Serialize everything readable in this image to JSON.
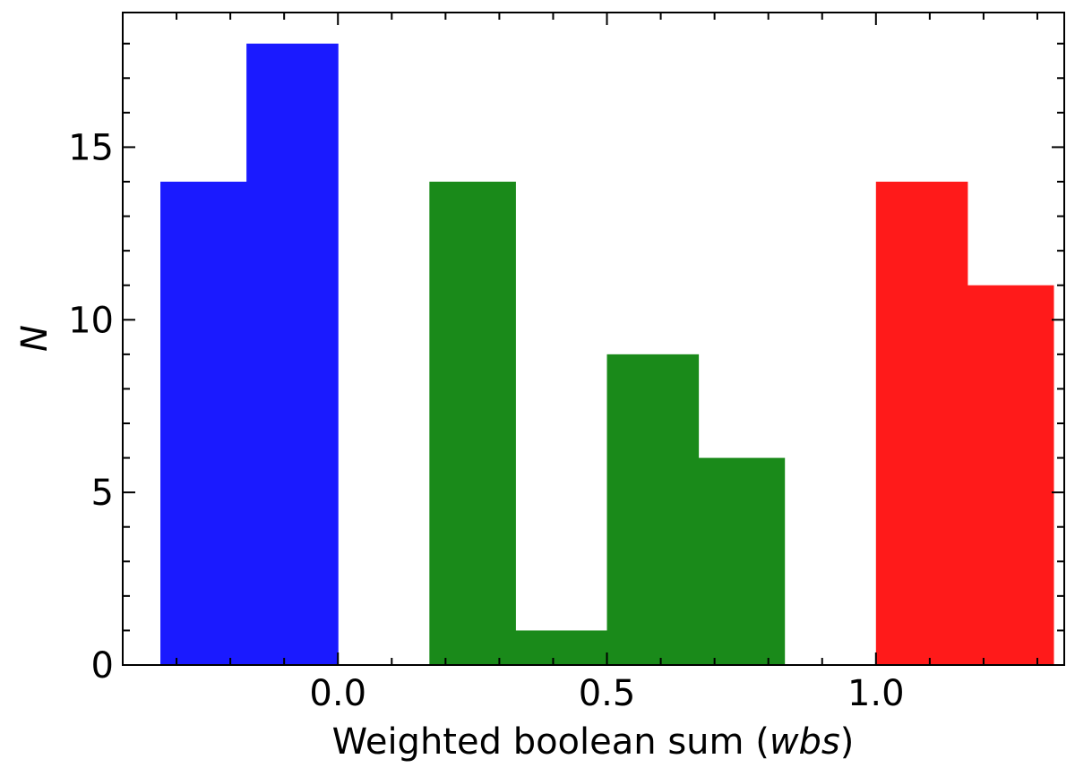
{
  "chart_data": {
    "type": "bar",
    "xlabel_prefix": "Weighted boolean sum (",
    "xlabel_italic": "wbs",
    "xlabel_suffix": ")",
    "ylabel": "N",
    "xlim": [
      -0.4,
      1.35
    ],
    "ylim": [
      0,
      18.9
    ],
    "x_ticks": [
      0.0,
      0.5,
      1.0
    ],
    "x_tick_labels": [
      "0.0",
      "0.5",
      "1.0"
    ],
    "x_minor_step": 0.1,
    "y_ticks": [
      0,
      5,
      10,
      15
    ],
    "y_tick_labels": [
      "0",
      "5",
      "10",
      "15"
    ],
    "y_minor_step": 1,
    "grid": false,
    "series": [
      {
        "color": "#1a1aff",
        "bins": [
          {
            "x0": -0.33,
            "x1": -0.17,
            "value": 14
          },
          {
            "x0": -0.17,
            "x1": 0.0,
            "value": 18
          }
        ]
      },
      {
        "color": "#1a8a1a",
        "bins": [
          {
            "x0": 0.17,
            "x1": 0.33,
            "value": 14
          },
          {
            "x0": 0.33,
            "x1": 0.5,
            "value": 1
          },
          {
            "x0": 0.5,
            "x1": 0.67,
            "value": 9
          },
          {
            "x0": 0.67,
            "x1": 0.83,
            "value": 6
          }
        ]
      },
      {
        "color": "#ff1a1a",
        "bins": [
          {
            "x0": 1.0,
            "x1": 1.17,
            "value": 14
          },
          {
            "x0": 1.17,
            "x1": 1.33,
            "value": 11
          }
        ]
      }
    ]
  }
}
